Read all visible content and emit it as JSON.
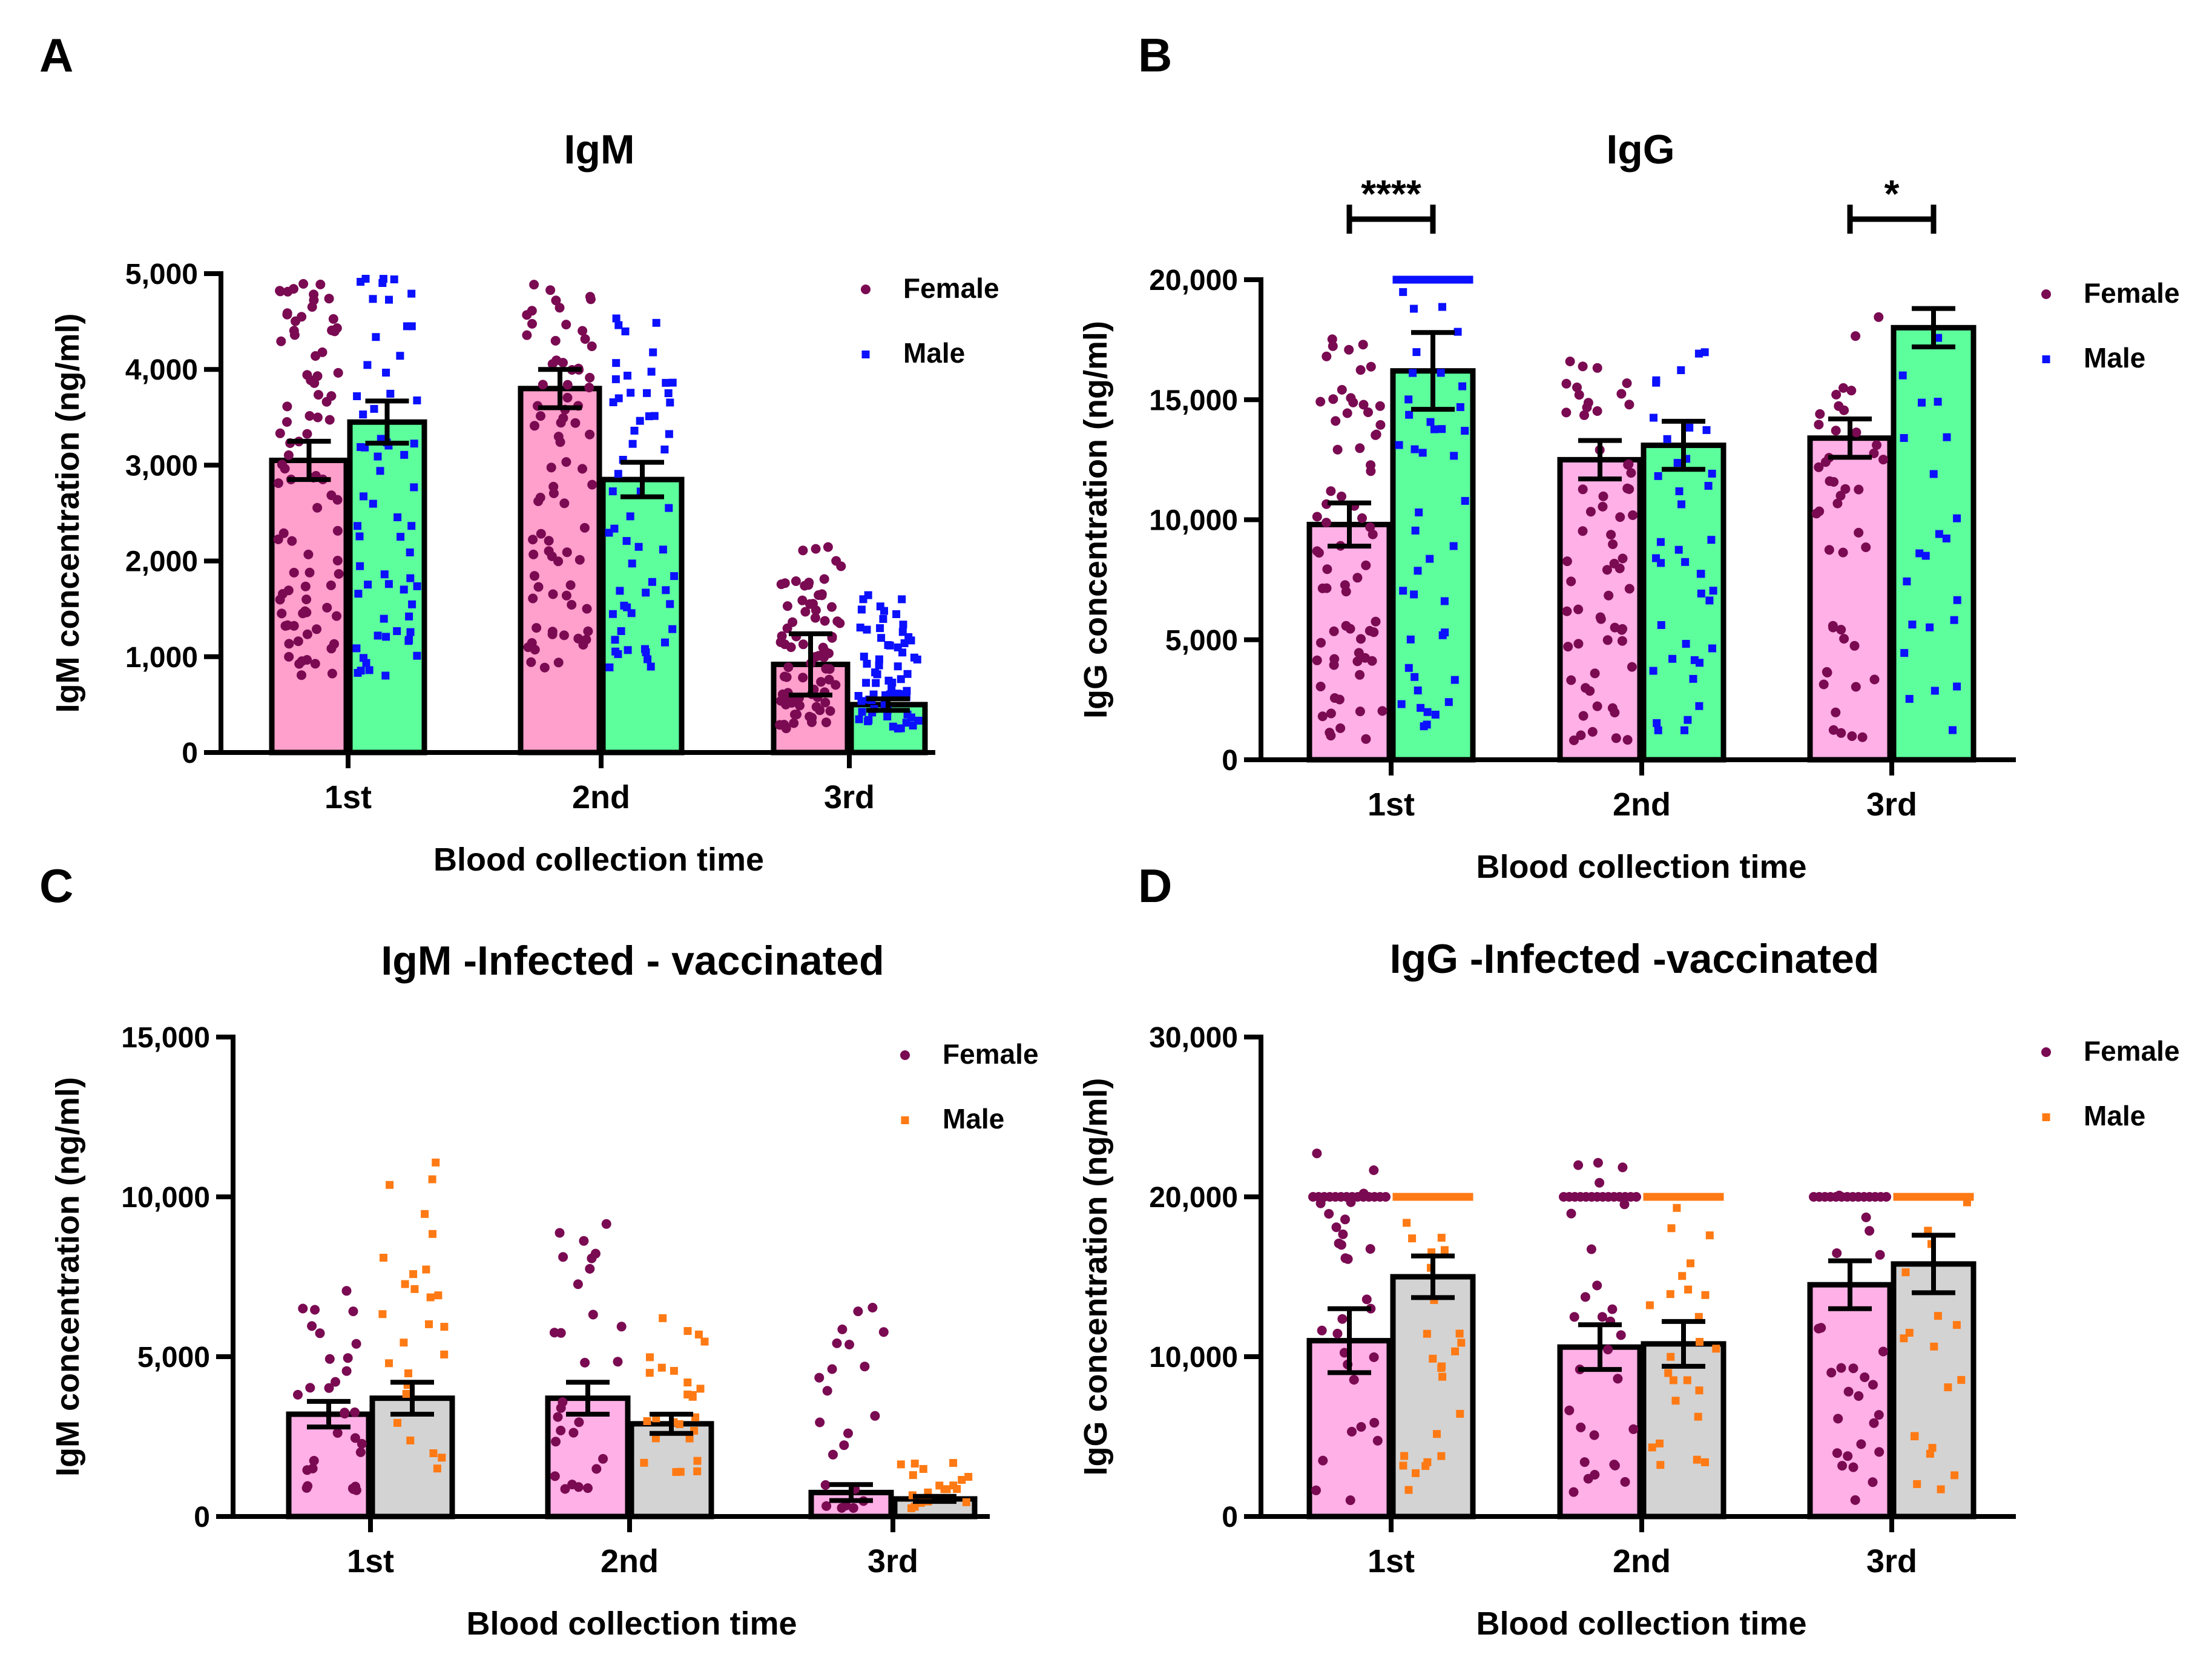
{
  "figure": {
    "colors": {
      "female_bar": "#ff9fcc",
      "female_bar_light": "#ffb0e6",
      "male_bar_green": "#5dff9c",
      "male_bar_grey": "#d3d3d3",
      "female_dot": "#7a0a52",
      "male_dot_blue": "#0b10ff",
      "male_dot_orange": "#ff7a14",
      "axis": "#000000"
    }
  },
  "chart_data": [
    {
      "panel": "A",
      "type": "bar",
      "title": "IgM",
      "xlabel": "Blood collection time",
      "ylabel": "IgM concentration (ng/ml)",
      "categories": [
        "1st",
        "2nd",
        "3rd"
      ],
      "ylim": [
        0,
        5000
      ],
      "yticks": [
        0,
        1000,
        2000,
        3000,
        4000,
        5000
      ],
      "ytick_labels": [
        "0",
        "1,000",
        "2,000",
        "3,000",
        "4,000",
        "5,000"
      ],
      "legend": {
        "position": "top-right",
        "entries": [
          "Female",
          "Male"
        ]
      },
      "series": [
        {
          "name": "Female",
          "bar_color": "#ff9fcc",
          "dot_color": "#7a0a52",
          "marker": "circle",
          "values": [
            3050,
            3800,
            920
          ],
          "errors": [
            200,
            200,
            320
          ],
          "points_per_group": [
            88,
            78,
            80
          ],
          "point_ranges": [
            [
              800,
              4900
            ],
            [
              800,
              4900
            ],
            [
              250,
              2150
            ]
          ]
        },
        {
          "name": "Male",
          "bar_color": "#5dff9c",
          "dot_color": "#0b10ff",
          "marker": "square",
          "values": [
            3450,
            2850,
            500
          ],
          "errors": [
            220,
            180,
            60
          ],
          "points_per_group": [
            62,
            58,
            65
          ],
          "point_ranges": [
            [
              800,
              4950
            ],
            [
              800,
              4600
            ],
            [
              250,
              1650
            ]
          ]
        }
      ],
      "significance": []
    },
    {
      "panel": "B",
      "type": "bar",
      "title": "IgG",
      "xlabel": "Blood collection time",
      "ylabel": "IgG concentration (ng/ml)",
      "categories": [
        "1st",
        "2nd",
        "3rd"
      ],
      "ylim": [
        0,
        20000
      ],
      "yticks": [
        0,
        5000,
        10000,
        15000,
        20000
      ],
      "ytick_labels": [
        "0",
        "5,000",
        "10,000",
        "15,000",
        "20,000"
      ],
      "legend": {
        "position": "top-right",
        "entries": [
          "Female",
          "Male"
        ]
      },
      "series": [
        {
          "name": "Female",
          "bar_color": "#ffb0e6",
          "dot_color": "#7a0a52",
          "marker": "circle",
          "values": [
            9800,
            12500,
            13400
          ],
          "errors": [
            900,
            800,
            800
          ],
          "points_per_group": [
            70,
            62,
            44
          ],
          "point_ranges": [
            [
              800,
              17600
            ],
            [
              800,
              16600
            ],
            [
              800,
              18500
            ]
          ]
        },
        {
          "name": "Male",
          "bar_color": "#5dff9c",
          "dot_color": "#0b10ff",
          "marker": "square",
          "values": [
            16200,
            13100,
            18000
          ],
          "errors": [
            1600,
            1000,
            800
          ],
          "points_per_group": [
            42,
            40,
            22
          ],
          "point_ranges": [
            [
              1000,
              20000
            ],
            [
              1000,
              17500
            ],
            [
              1000,
              18200
            ]
          ]
        }
      ],
      "significance": [
        {
          "group": "1st",
          "label": "****"
        },
        {
          "group": "3rd",
          "label": "*"
        }
      ]
    },
    {
      "panel": "C",
      "type": "bar",
      "title": "IgM -Infected - vaccinated",
      "xlabel": "Blood collection time",
      "ylabel": "IgM concentration (ng/ml)",
      "categories": [
        "1st",
        "2nd",
        "3rd"
      ],
      "ylim": [
        0,
        15000
      ],
      "yticks": [
        0,
        5000,
        10000,
        15000
      ],
      "ytick_labels": [
        "0",
        "5,000",
        "10,000",
        "15,000"
      ],
      "legend": {
        "position": "top-right",
        "entries": [
          "Female",
          "Male"
        ]
      },
      "series": [
        {
          "name": "Female",
          "bar_color": "#ffb0e6",
          "dot_color": "#7a0a52",
          "marker": "circle",
          "values": [
            3200,
            3700,
            750
          ],
          "errors": [
            400,
            500,
            250
          ],
          "points_per_group": [
            30,
            28,
            22
          ],
          "point_ranges": [
            [
              800,
              7200
            ],
            [
              800,
              9300
            ],
            [
              250,
              6700
            ]
          ]
        },
        {
          "name": "Male",
          "bar_color": "#d3d3d3",
          "dot_color": "#ff7a14",
          "marker": "square",
          "values": [
            3700,
            2900,
            550
          ],
          "errors": [
            500,
            300,
            80
          ],
          "points_per_group": [
            26,
            26,
            20
          ],
          "point_ranges": [
            [
              1500,
              11100
            ],
            [
              1200,
              6300
            ],
            [
              250,
              1700
            ]
          ]
        }
      ],
      "significance": []
    },
    {
      "panel": "D",
      "type": "bar",
      "title": "IgG -Infected -vaccinated",
      "xlabel": "Blood collection time",
      "ylabel": "IgG concentration (ng/ml)",
      "categories": [
        "1st",
        "2nd",
        "3rd"
      ],
      "ylim": [
        0,
        30000
      ],
      "yticks": [
        0,
        10000,
        20000,
        30000
      ],
      "ytick_labels": [
        "0",
        "10,000",
        "20,000",
        "30,000"
      ],
      "legend": {
        "position": "top-right",
        "entries": [
          "Female",
          "Male"
        ]
      },
      "series": [
        {
          "name": "Female",
          "bar_color": "#ffb0e6",
          "dot_color": "#7a0a52",
          "marker": "circle",
          "values": [
            11000,
            10600,
            14500
          ],
          "errors": [
            2000,
            1400,
            1500
          ],
          "points_per_group": [
            30,
            28,
            26
          ],
          "point_ranges": [
            [
              800,
              22800
            ],
            [
              1500,
              23200
            ],
            [
              800,
              21600
            ]
          ]
        },
        {
          "name": "Male",
          "bar_color": "#d3d3d3",
          "dot_color": "#ff7a14",
          "marker": "square",
          "values": [
            15000,
            10800,
            15800
          ],
          "errors": [
            1300,
            1400,
            1800
          ],
          "points_per_group": [
            24,
            24,
            18
          ],
          "point_ranges": [
            [
              1500,
              20000
            ],
            [
              1800,
              20000
            ],
            [
              1000,
              20000
            ]
          ]
        }
      ],
      "significance": []
    }
  ]
}
